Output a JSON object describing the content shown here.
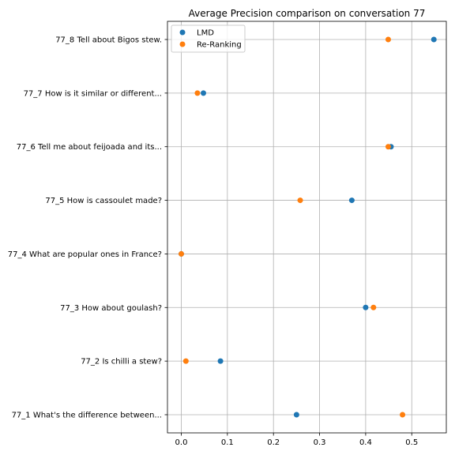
{
  "chart_data": {
    "type": "scatter",
    "title": "Average Precision comparison on conversation 77",
    "xlabel": "",
    "ylabel": "",
    "xlim": [
      -0.03,
      0.575
    ],
    "xticks": [
      0.0,
      0.1,
      0.2,
      0.3,
      0.4,
      0.5
    ],
    "xtick_labels": [
      "0.0",
      "0.1",
      "0.2",
      "0.3",
      "0.4",
      "0.5"
    ],
    "grid": true,
    "legend_position": "top-left",
    "categories": [
      "77_1 What's the difference between...",
      "77_2 Is chilli a stew?",
      "77_3 How about goulash?",
      "77_4 What are popular ones in France?",
      "77_5 How is cassoulet made?",
      "77_6 Tell me about feijoada and its...",
      "77_7 How is it similar or different...",
      "77_8 Tell about Bigos stew."
    ],
    "series": [
      {
        "name": "LMD",
        "color": "#1f77b4",
        "values": [
          0.25,
          0.085,
          0.4,
          0.0,
          0.37,
          0.455,
          0.048,
          0.548
        ]
      },
      {
        "name": "Re-Ranking",
        "color": "#ff7f0e",
        "values": [
          0.48,
          0.01,
          0.417,
          0.0,
          0.258,
          0.449,
          0.035,
          0.449
        ]
      }
    ]
  }
}
